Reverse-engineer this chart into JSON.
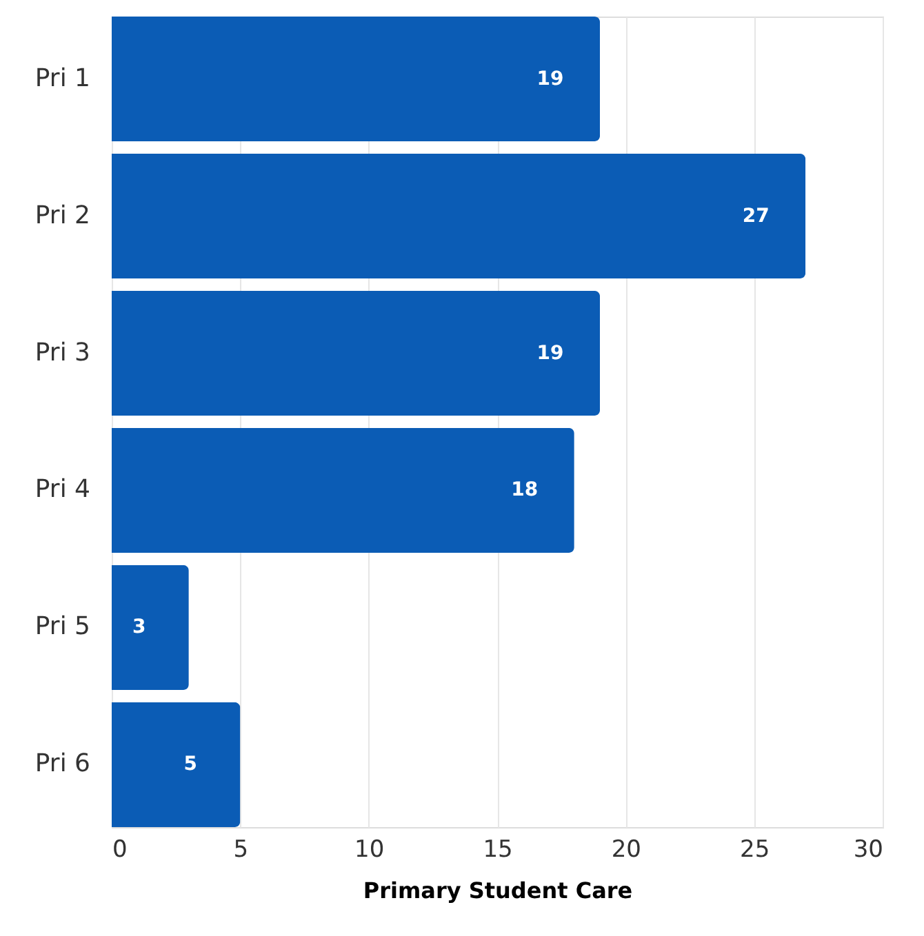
{
  "chart_data": {
    "type": "bar",
    "orientation": "horizontal",
    "xlabel": "Primary Student Care",
    "categories": [
      "Pri 1",
      "Pri 2",
      "Pri 3",
      "Pri 4",
      "Pri 5",
      "Pri 6"
    ],
    "values": [
      19,
      27,
      19,
      18,
      3,
      5
    ],
    "color": "#0b5cb5",
    "xlim": [
      0,
      30
    ],
    "xticks": [
      0,
      5,
      10,
      15,
      20,
      25,
      30
    ],
    "grid": "x",
    "data_labels": true
  }
}
